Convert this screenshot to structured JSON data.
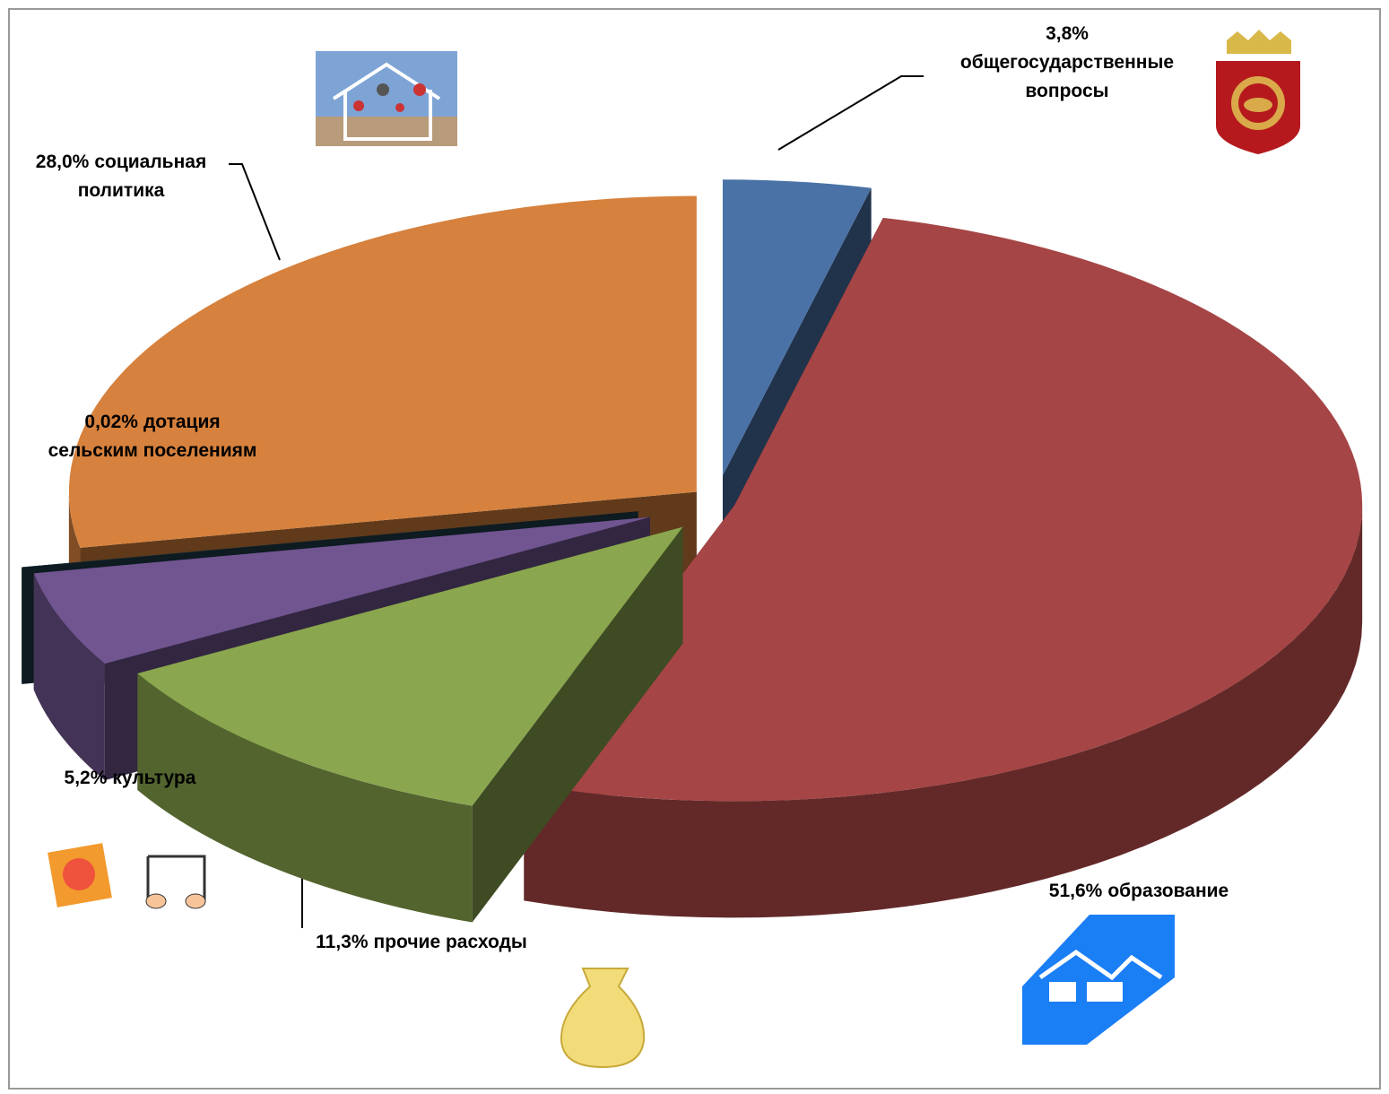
{
  "chart_data": {
    "type": "pie3d",
    "categories": [
      "общегосударственные вопросы",
      "образование",
      "прочие расходы",
      "культура",
      "дотация сельским поселениям",
      "социальная политика"
    ],
    "values": [
      3.8,
      51.6,
      11.3,
      5.2,
      0.02,
      28.0
    ],
    "value_labels": [
      "3,8%",
      "51,6%",
      "11,3%",
      "5,2%",
      "0,02%",
      "28,0%"
    ],
    "colors": [
      "#4a72a6",
      "#a54545",
      "#8aa64e",
      "#705590",
      "#1f3d4a",
      "#d6813d"
    ]
  }
}
